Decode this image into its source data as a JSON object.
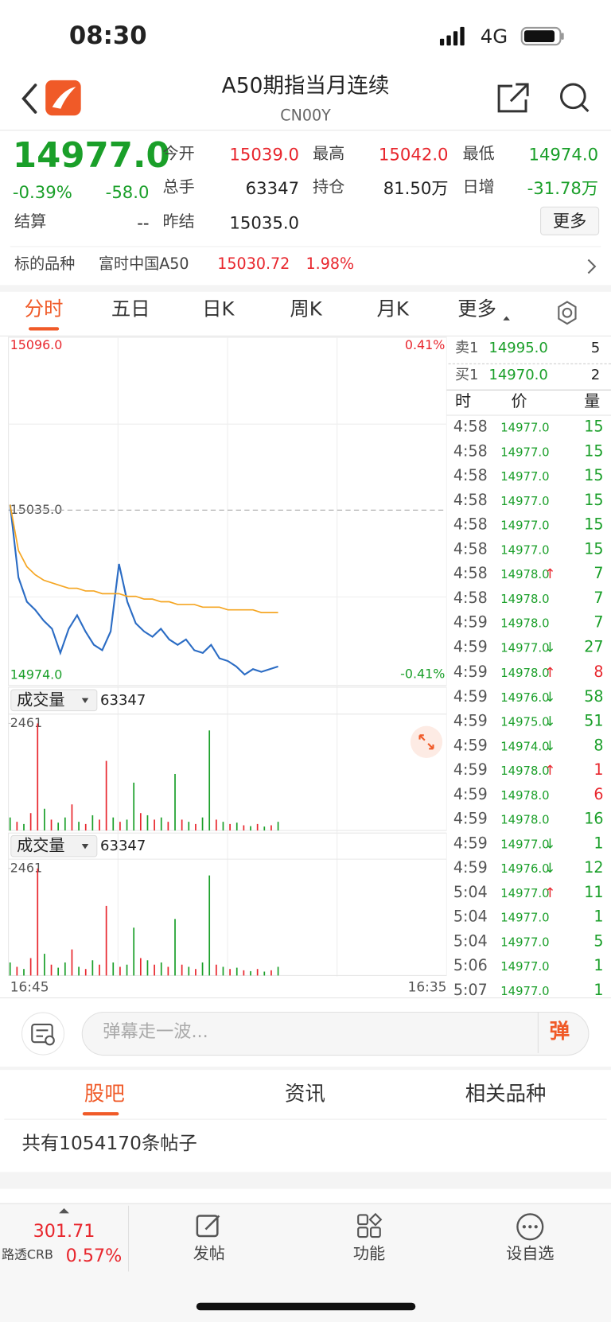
{
  "status_bar": {
    "time": "08:30",
    "network": "4G"
  },
  "header": {
    "title": "A50期指当月连续",
    "code": "CN00Y"
  },
  "quote": {
    "price": "14977.0",
    "change_pct": "-0.39%",
    "change": "-58.0",
    "more": "更多",
    "fields": [
      {
        "label": "今开",
        "value": "15039.0",
        "color": "#e8262d"
      },
      {
        "label": "最高",
        "value": "15042.0",
        "color": "#e8262d"
      },
      {
        "label": "最低",
        "value": "14974.0",
        "color": "#1a9f29"
      },
      {
        "label": "总手",
        "value": "63347",
        "color": "#222222"
      },
      {
        "label": "持仓",
        "value": "81.50万",
        "color": "#222222"
      },
      {
        "label": "日增",
        "value": "-31.78万",
        "color": "#1a9f29"
      },
      {
        "label": "结算",
        "value": "--",
        "color": "#222222"
      },
      {
        "label": "昨结",
        "value": "15035.0",
        "color": "#222222"
      }
    ]
  },
  "underlying": {
    "label": "标的品种",
    "name": "富时中国A50",
    "price": "15030.72",
    "pct": "1.98%"
  },
  "tabs": [
    "分时",
    "五日",
    "日K",
    "周K",
    "月K",
    "更多"
  ],
  "chart_data": [
    {
      "type": "line",
      "ylim": [
        14974,
        15096
      ],
      "yticks": [
        {
          "value": 15096,
          "label": "15096.0"
        },
        {
          "value": 15035,
          "label": "15035.0"
        },
        {
          "value": 14974,
          "label": "14974.0"
        }
      ],
      "y2lim": [
        -0.41,
        0.41
      ],
      "y2ticks": [
        {
          "value": 0.41,
          "label": "0.41%"
        },
        {
          "value": -0.41,
          "label": "-0.41%"
        }
      ],
      "x_labels": [
        "16:45",
        "16:35"
      ],
      "series": [
        {
          "color": "#2b6cc4",
          "values": [
            15037,
            15010,
            15001,
            14998,
            14994,
            14991,
            14982,
            14991,
            14996,
            14990,
            14985,
            14983,
            14990,
            15015,
            15001,
            14993,
            14990,
            14988,
            14991,
            14987,
            14985,
            14987,
            14983,
            14982,
            14985,
            14980,
            14979,
            14977,
            14974,
            14976,
            14975,
            14976,
            14977
          ]
        },
        {
          "color": "#f5a623",
          "values": [
            15037,
            15020,
            15014,
            15011,
            15009,
            15008,
            15007,
            15006,
            15006,
            15005,
            15005,
            15004,
            15004,
            15004,
            15003,
            15003,
            15002,
            15002,
            15001,
            15001,
            15000,
            15000,
            15000,
            14999,
            14999,
            14999,
            14998,
            14998,
            14998,
            14998,
            14997,
            14997,
            14997
          ]
        }
      ]
    },
    {
      "type": "bar",
      "title": "成交量",
      "total": "63347",
      "ylim": [
        0,
        2461
      ],
      "yticks": [
        2461
      ],
      "values": [
        300,
        200,
        150,
        400,
        2461,
        500,
        250,
        180,
        300,
        600,
        200,
        150,
        350,
        250,
        1600,
        300,
        200,
        250,
        1100,
        400,
        350,
        250,
        300,
        200,
        1300,
        250,
        200,
        150,
        300,
        2300,
        250,
        200,
        150,
        180,
        120,
        100,
        150,
        90,
        120,
        200
      ],
      "colors": [
        "#1a9f29",
        "#e8262d",
        "#1a9f29",
        "#e8262d",
        "#e8262d",
        "#1a9f29",
        "#e8262d",
        "#1a9f29",
        "#1a9f29",
        "#e8262d",
        "#1a9f29",
        "#e8262d",
        "#1a9f29",
        "#e8262d",
        "#e8262d",
        "#1a9f29",
        "#e8262d",
        "#1a9f29",
        "#1a9f29",
        "#e8262d",
        "#1a9f29",
        "#e8262d",
        "#1a9f29",
        "#e8262d",
        "#1a9f29",
        "#e8262d",
        "#1a9f29",
        "#e8262d",
        "#1a9f29",
        "#1a9f29",
        "#e8262d",
        "#1a9f29",
        "#e8262d",
        "#1a9f29",
        "#e8262d",
        "#1a9f29",
        "#e8262d",
        "#1a9f29",
        "#e8262d",
        "#1a9f29"
      ]
    }
  ],
  "order_book": {
    "ask": {
      "label": "卖1",
      "price": "14995.0",
      "qty": "5"
    },
    "bid": {
      "label": "买1",
      "price": "14970.0",
      "qty": "2"
    },
    "columns": [
      "时",
      "价",
      "量"
    ]
  },
  "trades": [
    {
      "time": "4:58",
      "price": "14977.0",
      "vol": "15",
      "vol_color": "#1a9f29"
    },
    {
      "time": "4:58",
      "price": "14977.0",
      "vol": "15",
      "vol_color": "#1a9f29"
    },
    {
      "time": "4:58",
      "price": "14977.0",
      "vol": "15",
      "vol_color": "#1a9f29"
    },
    {
      "time": "4:58",
      "price": "14977.0",
      "vol": "15",
      "vol_color": "#1a9f29"
    },
    {
      "time": "4:58",
      "price": "14977.0",
      "vol": "15",
      "vol_color": "#1a9f29"
    },
    {
      "time": "4:58",
      "price": "14977.0",
      "vol": "15",
      "vol_color": "#1a9f29"
    },
    {
      "time": "4:58",
      "price": "14978.0",
      "arrow": "↑",
      "vol": "7",
      "vol_color": "#1a9f29"
    },
    {
      "time": "4:58",
      "price": "14978.0",
      "vol": "7",
      "vol_color": "#1a9f29"
    },
    {
      "time": "4:59",
      "price": "14978.0",
      "vol": "7",
      "vol_color": "#1a9f29"
    },
    {
      "time": "4:59",
      "price": "14977.0",
      "arrow": "↓",
      "vol": "27",
      "vol_color": "#1a9f29"
    },
    {
      "time": "4:59",
      "price": "14978.0",
      "arrow": "↑",
      "vol": "8",
      "vol_color": "#e8262d"
    },
    {
      "time": "4:59",
      "price": "14976.0",
      "arrow": "↓",
      "vol": "58",
      "vol_color": "#1a9f29"
    },
    {
      "time": "4:59",
      "price": "14975.0",
      "arrow": "↓",
      "vol": "51",
      "vol_color": "#1a9f29"
    },
    {
      "time": "4:59",
      "price": "14974.0",
      "arrow": "↓",
      "vol": "8",
      "vol_color": "#1a9f29"
    },
    {
      "time": "4:59",
      "price": "14978.0",
      "arrow": "↑",
      "vol": "1",
      "vol_color": "#e8262d"
    },
    {
      "time": "4:59",
      "price": "14978.0",
      "vol": "6",
      "vol_color": "#e8262d"
    },
    {
      "time": "4:59",
      "price": "14978.0",
      "vol": "16",
      "vol_color": "#1a9f29"
    },
    {
      "time": "4:59",
      "price": "14977.0",
      "arrow": "↓",
      "vol": "1",
      "vol_color": "#1a9f29"
    },
    {
      "time": "4:59",
      "price": "14976.0",
      "arrow": "↓",
      "vol": "12",
      "vol_color": "#1a9f29"
    },
    {
      "time": "5:04",
      "price": "14977.0",
      "arrow": "↑",
      "vol": "11",
      "vol_color": "#1a9f29"
    },
    {
      "time": "5:04",
      "price": "14977.0",
      "vol": "1",
      "vol_color": "#1a9f29"
    },
    {
      "time": "5:04",
      "price": "14977.0",
      "vol": "5",
      "vol_color": "#1a9f29"
    },
    {
      "time": "5:06",
      "price": "14977.0",
      "vol": "1",
      "vol_color": "#1a9f29"
    },
    {
      "time": "5:07",
      "price": "14977.0",
      "vol": "1",
      "vol_color": "#1a9f29"
    }
  ],
  "comment_bar": {
    "placeholder": "弹幕走一波...",
    "button": "弹"
  },
  "forum_tabs": [
    "股吧",
    "资讯",
    "相关品种"
  ],
  "post_count": "共有1054170条帖子",
  "bottom_bar": {
    "index_value": "301.71",
    "index_name": "路透CRB",
    "index_pct": "0.57%",
    "items": [
      "发帖",
      "功能",
      "设自选"
    ]
  }
}
